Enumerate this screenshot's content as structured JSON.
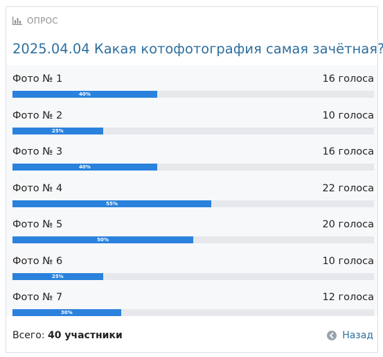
{
  "poll": {
    "section_label": "ОПРОС",
    "title": "2025.04.04 Какая котофотография самая зачётная?",
    "options": [
      {
        "label": "Фото № 1",
        "votes_text": "16 голоса",
        "percent": 40,
        "percent_text": "40%"
      },
      {
        "label": "Фото № 2",
        "votes_text": "10 голоса",
        "percent": 25,
        "percent_text": "25%"
      },
      {
        "label": "Фото № 3",
        "votes_text": "16 голоса",
        "percent": 40,
        "percent_text": "40%"
      },
      {
        "label": "Фото № 4",
        "votes_text": "22 голоса",
        "percent": 55,
        "percent_text": "55%"
      },
      {
        "label": "Фото № 5",
        "votes_text": "20 голоса",
        "percent": 50,
        "percent_text": "50%"
      },
      {
        "label": "Фото № 6",
        "votes_text": "10 голоса",
        "percent": 25,
        "percent_text": "25%"
      },
      {
        "label": "Фото № 7",
        "votes_text": "12 голоса",
        "percent": 30,
        "percent_text": "30%"
      }
    ],
    "total_label": "Всего:",
    "total_count": "40 участники",
    "back_label": "Назад"
  },
  "colors": {
    "accent": "#2a82dc",
    "title": "#2e6f9e",
    "track": "#e6e8eb"
  },
  "icons": {
    "header": "bar-chart-icon",
    "back": "arrow-left-circle-icon"
  }
}
